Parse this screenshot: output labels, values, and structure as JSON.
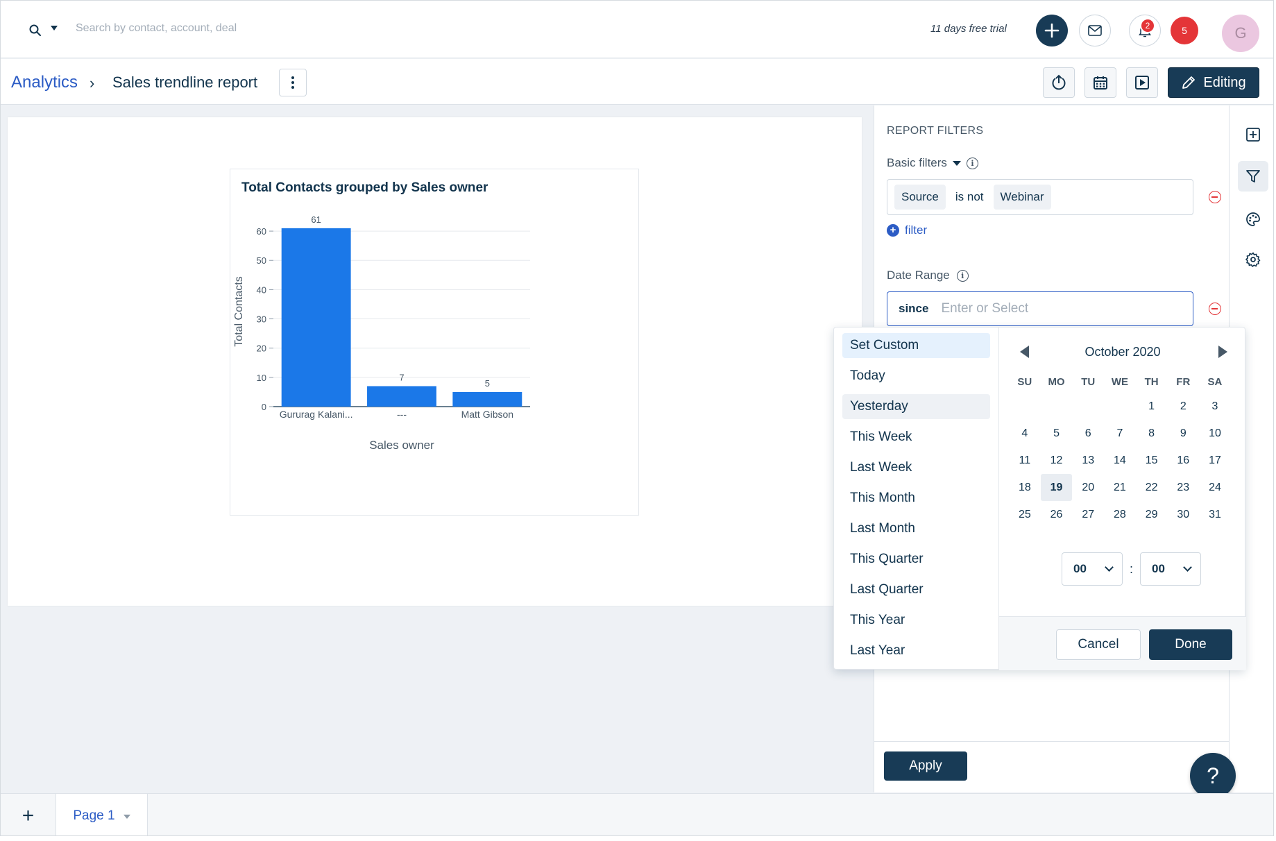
{
  "topbar": {
    "search_placeholder": "Search by contact, account, deal",
    "trial_text": "11 days free trial",
    "bell_badge": "2",
    "notification_count": "5",
    "avatar_initial": "G"
  },
  "header": {
    "breadcrumb_link": "Analytics",
    "breadcrumb_separator": "›",
    "page_title": "Sales trendline report",
    "editing_label": "Editing"
  },
  "chart_data": {
    "type": "bar",
    "title": "Total Contacts grouped by Sales owner",
    "categories": [
      "Gururag Kalani...",
      "---",
      "Matt Gibson"
    ],
    "values": [
      61,
      7,
      5
    ],
    "data_labels": [
      "61",
      "7",
      "5"
    ],
    "xlabel": "Sales owner",
    "ylabel": "Total Contacts",
    "ylim": [
      0,
      65
    ],
    "yticks": [
      0,
      10,
      20,
      30,
      40,
      50,
      60
    ],
    "grid": true,
    "bar_color": "#1b78e8"
  },
  "filters": {
    "heading": "REPORT FILTERS",
    "basic_filters_label": "Basic filters",
    "condition": {
      "field": "Source",
      "operator": "is not",
      "value": "Webinar"
    },
    "add_filter_label": "filter",
    "date_range_label": "Date Range",
    "date_prefix": "since",
    "date_placeholder": "Enter or Select",
    "apply_label": "Apply"
  },
  "date_picker": {
    "presets": [
      "Set Custom",
      "Today",
      "Yesterday",
      "This Week",
      "Last Week",
      "This Month",
      "Last Month",
      "This Quarter",
      "Last Quarter",
      "This Year",
      "Last Year"
    ],
    "selected_preset": "Set Custom",
    "hovered_preset": "Yesterday",
    "month_label": "October 2020",
    "weekdays": [
      "SU",
      "MO",
      "TU",
      "WE",
      "TH",
      "FR",
      "SA"
    ],
    "weeks": [
      [
        "",
        "",
        "",
        "",
        "1",
        "2",
        "3"
      ],
      [
        "4",
        "5",
        "6",
        "7",
        "8",
        "9",
        "10"
      ],
      [
        "11",
        "12",
        "13",
        "14",
        "15",
        "16",
        "17"
      ],
      [
        "18",
        "19",
        "20",
        "21",
        "22",
        "23",
        "24"
      ],
      [
        "25",
        "26",
        "27",
        "28",
        "29",
        "30",
        "31"
      ]
    ],
    "highlighted_day": "19",
    "hour": "00",
    "minute": "00",
    "time_separator": ":",
    "cancel_label": "Cancel",
    "done_label": "Done"
  },
  "footer": {
    "add_page": "+",
    "page_tab": "Page 1"
  },
  "help_label": "?",
  "colors": {
    "primary_dark": "#183b56",
    "link_blue": "#2c5cc5",
    "bar_blue": "#1b78e8",
    "alert_red": "#e43538"
  }
}
